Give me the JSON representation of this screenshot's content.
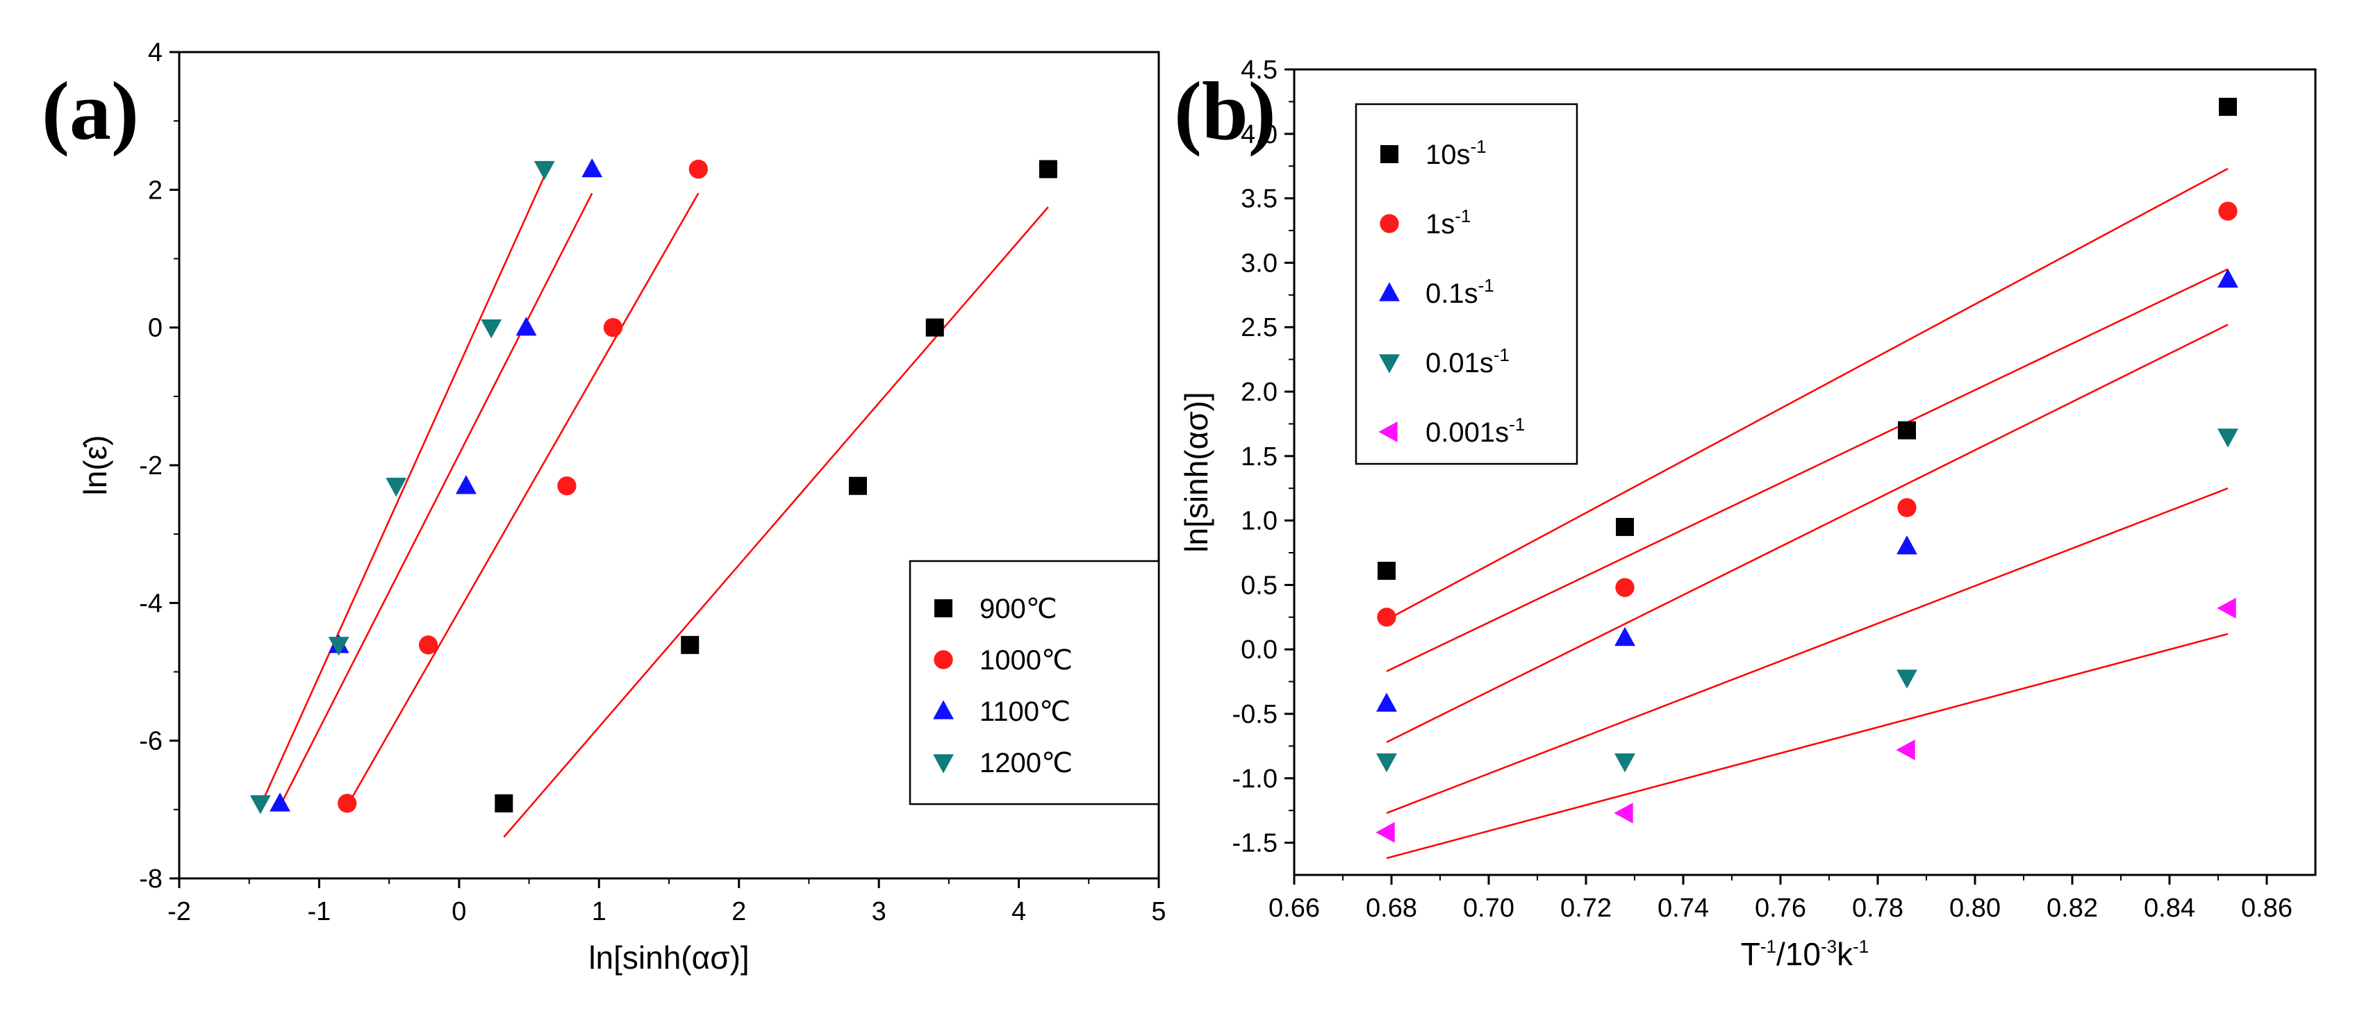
{
  "figure": {
    "panel_a_label": "(a)",
    "panel_b_label": "(b)"
  },
  "colors": {
    "black": "#000000",
    "red": "#ff1a1a",
    "blue": "#1010ff",
    "teal": "#107c7c",
    "magenta": "#ff10ff",
    "fit_line": "#ff0000",
    "axis": "#000000"
  },
  "chart_data": [
    {
      "type": "scatter",
      "panel": "a",
      "title": "",
      "xlabel": "ln[sinh(ασ)]",
      "ylabel": "ln(ε̇)",
      "xlim": [
        -2,
        5
      ],
      "ylim": [
        -8,
        4
      ],
      "xticks": [
        -2,
        -1,
        0,
        1,
        2,
        3,
        4,
        5
      ],
      "yticks": [
        -8,
        -6,
        -4,
        -2,
        0,
        2,
        4
      ],
      "legend_position": "right-middle",
      "series": [
        {
          "name": "900℃",
          "marker": "square",
          "color": "#000000",
          "x": [
            0.32,
            1.65,
            2.85,
            3.4,
            4.21
          ],
          "y": [
            -6.91,
            -4.61,
            -2.3,
            0.0,
            2.3
          ],
          "fit": {
            "x": [
              0.32,
              4.21
            ],
            "y": [
              -7.4,
              1.75
            ]
          }
        },
        {
          "name": "1000℃",
          "marker": "circle",
          "color": "#ff1a1a",
          "x": [
            -0.8,
            -0.22,
            0.77,
            1.1,
            1.71
          ],
          "y": [
            -6.91,
            -4.61,
            -2.3,
            0.0,
            2.3
          ],
          "fit": {
            "x": [
              -0.8,
              1.71
            ],
            "y": [
              -6.95,
              1.95
            ]
          }
        },
        {
          "name": "1100℃",
          "marker": "triangle-up",
          "color": "#1010ff",
          "x": [
            -1.28,
            -0.86,
            0.05,
            0.48,
            0.95
          ],
          "y": [
            -6.91,
            -4.61,
            -2.3,
            0.0,
            2.3
          ],
          "fit": {
            "x": [
              -1.28,
              0.95
            ],
            "y": [
              -6.95,
              1.95
            ]
          }
        },
        {
          "name": "1200℃",
          "marker": "triangle-down",
          "color": "#107c7c",
          "x": [
            -1.42,
            -0.86,
            -0.45,
            0.23,
            0.61
          ],
          "y": [
            -6.91,
            -4.61,
            -2.3,
            0.0,
            2.3
          ],
          "fit": {
            "x": [
              -1.42,
              0.61
            ],
            "y": [
              -6.95,
              2.2
            ]
          }
        }
      ]
    },
    {
      "type": "scatter",
      "panel": "b",
      "title": "",
      "xlabel": "T⁻¹/10⁻³k⁻¹",
      "ylabel": "ln[sinh(ασ)]",
      "xlim": [
        0.66,
        0.87
      ],
      "ylim": [
        -1.75,
        4.5
      ],
      "xticks": [
        0.66,
        0.68,
        0.7,
        0.72,
        0.74,
        0.76,
        0.78,
        0.8,
        0.82,
        0.84,
        0.86
      ],
      "yticks": [
        -1.5,
        -1.0,
        -0.5,
        0.0,
        0.5,
        1.0,
        1.5,
        2.0,
        2.5,
        3.0,
        3.5,
        4.0,
        4.5
      ],
      "legend_position": "top-left",
      "series": [
        {
          "name": "10s",
          "unit_sup": "-1",
          "marker": "square",
          "color": "#000000",
          "x": [
            0.679,
            0.728,
            0.786,
            0.852
          ],
          "y": [
            0.61,
            0.95,
            1.7,
            4.21
          ],
          "fit": {
            "x": [
              0.679,
              0.852
            ],
            "y": [
              0.23,
              3.73
            ]
          }
        },
        {
          "name": "1s",
          "unit_sup": "-1",
          "marker": "circle",
          "color": "#ff1a1a",
          "x": [
            0.679,
            0.728,
            0.786,
            0.852
          ],
          "y": [
            0.25,
            0.48,
            1.1,
            3.4
          ],
          "fit": {
            "x": [
              0.679,
              0.852
            ],
            "y": [
              -0.17,
              2.95
            ]
          }
        },
        {
          "name": "0.1s",
          "unit_sup": "-1",
          "marker": "triangle-up",
          "color": "#1010ff",
          "x": [
            0.679,
            0.728,
            0.786,
            0.852
          ],
          "y": [
            -0.42,
            0.09,
            0.8,
            2.87
          ],
          "fit": {
            "x": [
              0.679,
              0.852
            ],
            "y": [
              -0.72,
              2.52
            ]
          }
        },
        {
          "name": "0.01s",
          "unit_sup": "-1",
          "marker": "triangle-down",
          "color": "#107c7c",
          "x": [
            0.679,
            0.728,
            0.786,
            0.852
          ],
          "y": [
            -0.87,
            -0.87,
            -0.22,
            1.65
          ],
          "fit": {
            "x": [
              0.679,
              0.852
            ],
            "y": [
              -1.27,
              1.25
            ]
          }
        },
        {
          "name": "0.001s",
          "unit_sup": "-1",
          "marker": "triangle-left",
          "color": "#ff10ff",
          "x": [
            0.679,
            0.728,
            0.786,
            0.852
          ],
          "y": [
            -1.42,
            -1.27,
            -0.78,
            0.32
          ],
          "fit": {
            "x": [
              0.679,
              0.852
            ],
            "y": [
              -1.62,
              0.12
            ]
          }
        }
      ]
    }
  ]
}
